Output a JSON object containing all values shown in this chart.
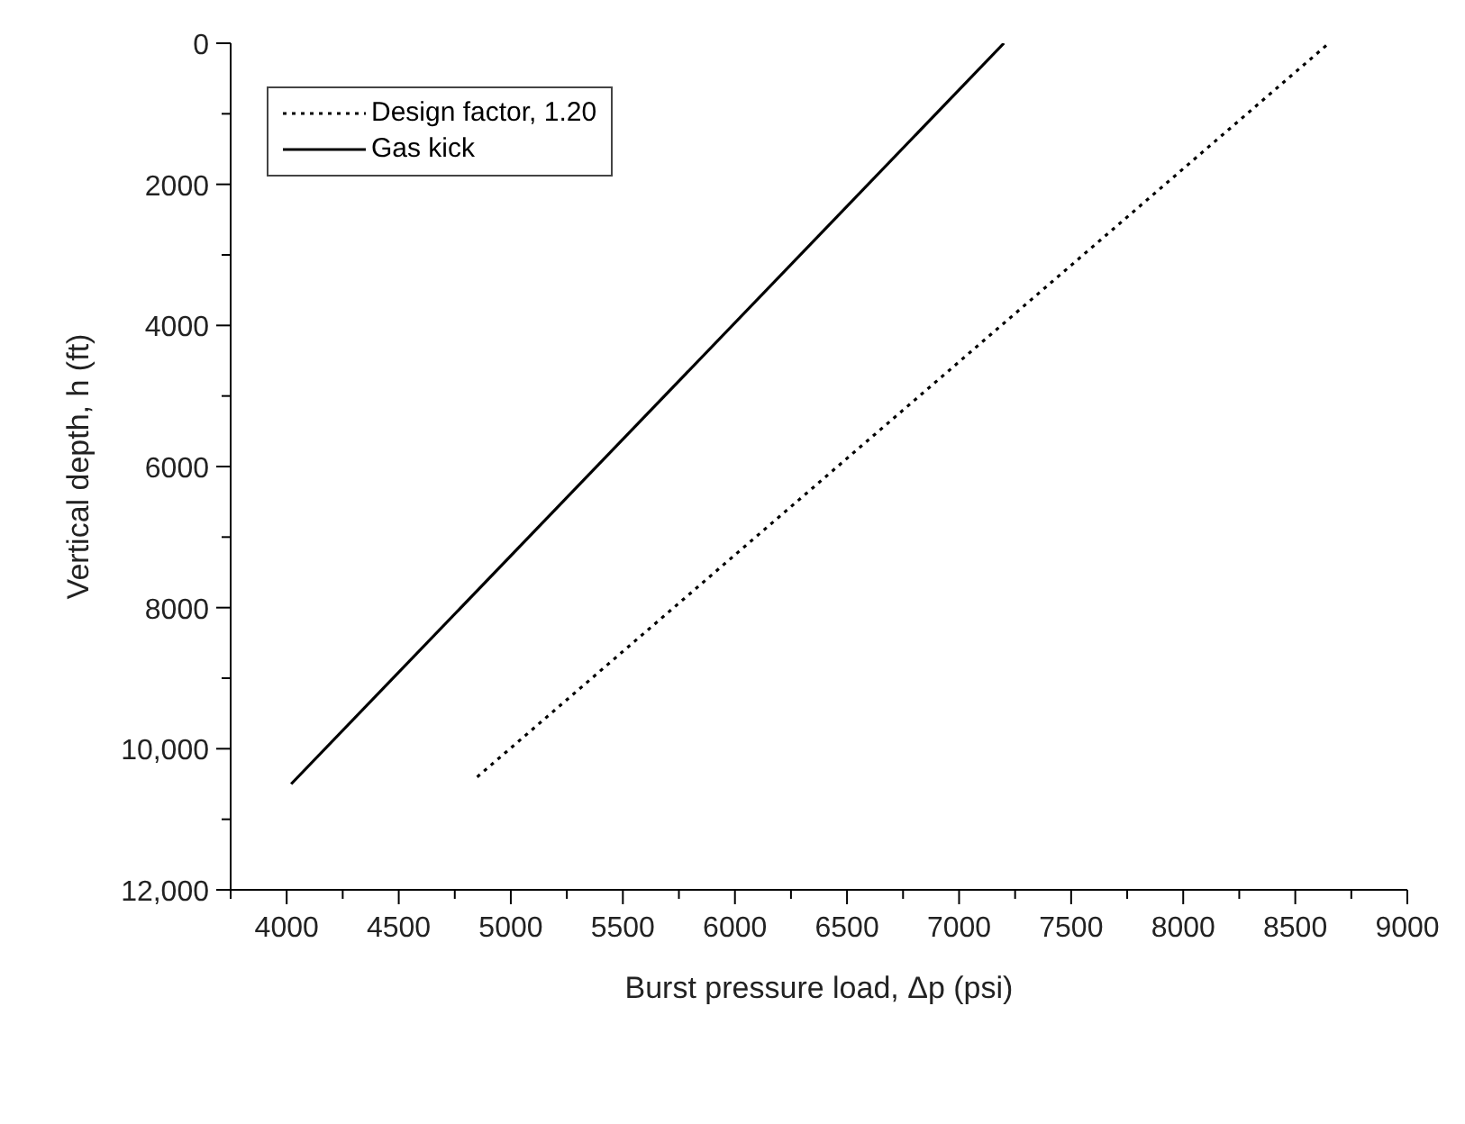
{
  "chart_data": {
    "type": "line",
    "xlabel": "Burst pressure load, Δp (psi)",
    "ylabel": "Vertical depth, h (ft)",
    "series": [
      {
        "name": "Design factor, 1.20",
        "color": "#000000",
        "line_style": "dotted",
        "x": [
          4850,
          8650
        ],
        "values": [
          10400,
          0
        ]
      },
      {
        "name": "Gas kick",
        "color": "#000000",
        "line_style": "solid",
        "x": [
          4020,
          7200
        ],
        "values": [
          10500,
          0
        ]
      }
    ],
    "xlim": [
      3750,
      9000
    ],
    "xticks": [
      {
        "value": 3750,
        "label": null
      },
      4000,
      {
        "value": 4250,
        "label": null
      },
      4500,
      {
        "value": 4750,
        "label": null
      },
      5000,
      {
        "value": 5250,
        "label": null
      },
      5500,
      {
        "value": 5750,
        "label": null
      },
      6000,
      {
        "value": 6250,
        "label": null
      },
      6500,
      {
        "value": 6750,
        "label": null
      },
      7000,
      {
        "value": 7250,
        "label": null
      },
      7500,
      {
        "value": 7750,
        "label": null
      },
      8000,
      {
        "value": 8250,
        "label": null
      },
      8500,
      {
        "value": 8750,
        "label": null
      },
      9000
    ],
    "ylim": [
      12000,
      0
    ],
    "yticks": [
      0,
      {
        "value": 1000,
        "label": null
      },
      2000,
      {
        "value": 3000,
        "label": null
      },
      4000,
      {
        "value": 5000,
        "label": null
      },
      6000,
      {
        "value": 7000,
        "label": null
      },
      8000,
      {
        "value": 9000,
        "label": null
      },
      {
        "value": 10000,
        "label": "10,000"
      },
      {
        "value": 11000,
        "label": null
      },
      {
        "value": 12000,
        "label": "12,000"
      }
    ],
    "grid": false,
    "legend": "top left",
    "marker": "none"
  }
}
